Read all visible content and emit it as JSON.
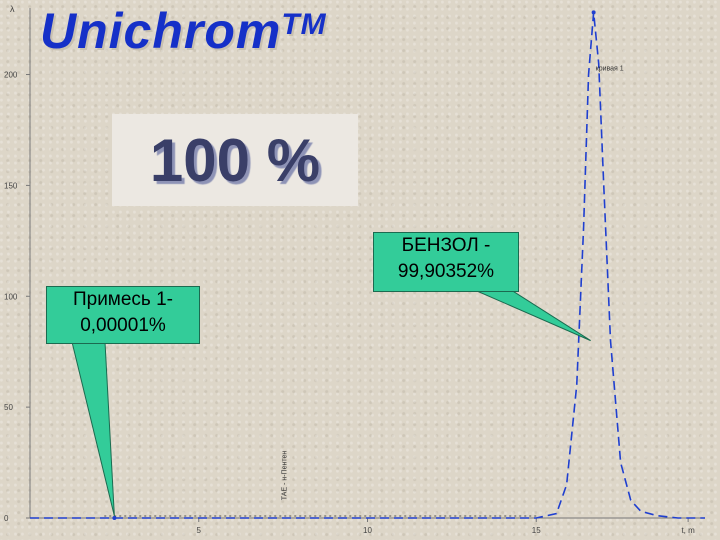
{
  "app": {
    "logo": "Unichrom",
    "trademark": "TM"
  },
  "purity_label": "100 %",
  "callouts": {
    "impurity_title": "Примесь 1-",
    "impurity_value": "0,00001%",
    "benzene_title": "БЕНЗОЛ -",
    "benzene_value": "99,90352%"
  },
  "colors": {
    "logo": "#1530c8",
    "trace": "#1f3fd0",
    "callout_fill": "#33cc99",
    "background": "#ddd6c8"
  },
  "chart_data": {
    "type": "line",
    "title": "",
    "xlabel": "t",
    "ylabel": "λ",
    "xlim": [
      0,
      20
    ],
    "ylim": [
      0,
      230
    ],
    "x_ticks": [
      "5",
      "10",
      "15",
      "t, m"
    ],
    "x_tick_values": [
      5,
      10,
      15,
      19.5
    ],
    "y_ticks": [
      "0",
      "50",
      "100",
      "150",
      "200"
    ],
    "y_tick_values": [
      0,
      50,
      100,
      150,
      200
    ],
    "grid": false,
    "peaks": [
      {
        "name": "Примесь 1",
        "x": 2.5,
        "height": 0.0,
        "area_percent": 1e-05
      },
      {
        "name": "БЕНЗОЛ",
        "x": 16.7,
        "height": 228,
        "area_percent": 99.90352
      }
    ],
    "series": [
      {
        "name": "",
        "x": [
          0,
          2.5,
          15.0,
          15.6,
          15.9,
          16.2,
          16.4,
          16.55,
          16.7,
          16.85,
          17.0,
          17.2,
          17.5,
          17.8,
          18.1,
          18.6,
          19.2,
          20
        ],
        "values": [
          0,
          0,
          0,
          2,
          15,
          60,
          130,
          200,
          228,
          205,
          150,
          80,
          25,
          8,
          3,
          1,
          0,
          0
        ]
      }
    ],
    "annotations": [
      "кривая 1",
      "ТАЕ - н-Пентен"
    ]
  }
}
